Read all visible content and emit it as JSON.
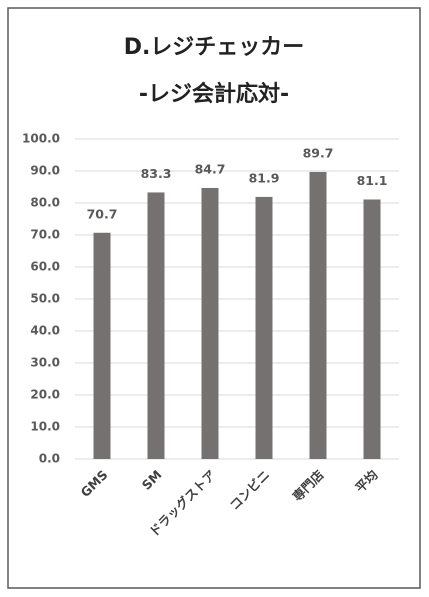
{
  "chart_data": {
    "type": "bar",
    "title": [
      "D.レジチェッカー",
      "-レジ会計応対-"
    ],
    "categories": [
      "GMS",
      "SM",
      "ドラッグストア",
      "コンビニ",
      "専門店",
      "平均"
    ],
    "values": [
      70.7,
      83.3,
      84.7,
      81.9,
      89.7,
      81.1
    ],
    "color": "#767171",
    "ylim": [
      0,
      100
    ],
    "yticks": [
      {
        "value": 0,
        "label": "0.0"
      },
      {
        "value": 10,
        "label": "10.0"
      },
      {
        "value": 20,
        "label": "20.0"
      },
      {
        "value": 30,
        "label": "30.0"
      },
      {
        "value": 40,
        "label": "40.0"
      },
      {
        "value": 50,
        "label": "50.0"
      },
      {
        "value": 60,
        "label": "60.0"
      },
      {
        "value": 70,
        "label": "70.0"
      },
      {
        "value": 80,
        "label": "80.0"
      },
      {
        "value": 90,
        "label": "90.0"
      },
      {
        "value": 100,
        "label": "100.0"
      }
    ],
    "grid": true
  }
}
